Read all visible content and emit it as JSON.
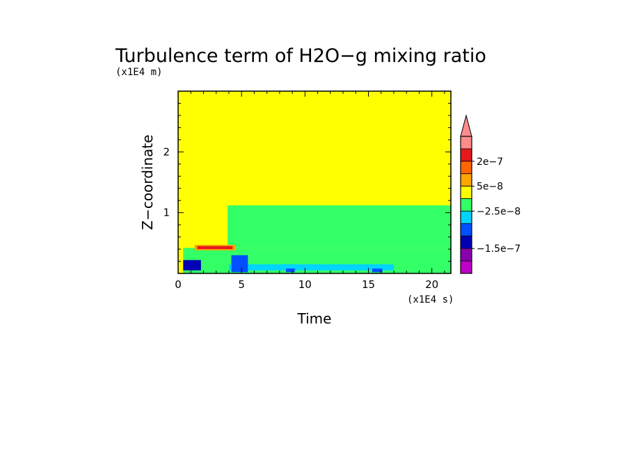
{
  "chart_data": {
    "type": "heatmap",
    "title": "Turbulence term of H2O−g mixing ratio",
    "xlabel": "Time",
    "ylabel": "Z−coordinate",
    "x_unit_label": "(x1E4 s)",
    "y_unit_label": "(x1E4 m)",
    "xlim": [
      0,
      21.5
    ],
    "ylim": [
      0,
      3
    ],
    "x_ticks": [
      0,
      5,
      10,
      15,
      20
    ],
    "x_tick_labels": [
      "0",
      "5",
      "10",
      "15",
      "20"
    ],
    "y_ticks": [
      1,
      2
    ],
    "y_tick_labels": [
      "1",
      "2"
    ],
    "background_color": "#ffff00",
    "colorbar": {
      "extend": "max",
      "levels": [
        {
          "color": "#ff8c8c"
        },
        {
          "color": "#e41a1c"
        },
        {
          "color": "#ff6600"
        },
        {
          "color": "#ffa500"
        },
        {
          "color": "#ffff00"
        },
        {
          "color": "#33ff66"
        },
        {
          "color": "#00d4ff"
        },
        {
          "color": "#0050ff"
        },
        {
          "color": "#0000b4"
        },
        {
          "color": "#8800b0"
        },
        {
          "color": "#c000c8"
        }
      ],
      "labels": [
        "2e−7",
        "5e−8",
        "−2.5e−8",
        "−1.5e−7"
      ]
    },
    "regions": [
      {
        "value": "-2.5e-8",
        "color": "#33ff66",
        "t0": 3.9,
        "t1": 21.5,
        "z0": 0.95,
        "z1": 1.12
      },
      {
        "value": "-2.5e-8",
        "color": "#33ff66",
        "t0": 3.9,
        "t1": 21.5,
        "z0": 0.42,
        "z1": 0.95
      },
      {
        "value": "-2.5e-8",
        "color": "#33ff66",
        "t0": 0.4,
        "t1": 3.9,
        "z0": 0.0,
        "z1": 0.42
      },
      {
        "value": "-2.5e-8",
        "color": "#33ff66",
        "t0": 3.9,
        "t1": 21.5,
        "z0": 0.0,
        "z1": 0.42
      },
      {
        "value": "5e-8",
        "color": "#ffa500",
        "t0": 1.3,
        "t1": 4.5,
        "z0": 0.38,
        "z1": 0.47
      },
      {
        "value": "2e-7",
        "color": "#e41a1c",
        "t0": 1.5,
        "t1": 4.3,
        "z0": 0.4,
        "z1": 0.45
      },
      {
        "value": "-5e-8",
        "color": "#00d4ff",
        "t0": 4.0,
        "t1": 17.0,
        "z0": 0.05,
        "z1": 0.15
      },
      {
        "value": "-1e-7",
        "color": "#0050ff",
        "t0": 4.2,
        "t1": 5.5,
        "z0": 0.02,
        "z1": 0.3
      },
      {
        "value": "-1.5e-7",
        "color": "#0000b4",
        "t0": 0.4,
        "t1": 1.8,
        "z0": 0.05,
        "z1": 0.22
      },
      {
        "value": "-1e-7",
        "color": "#0050ff",
        "t0": 8.5,
        "t1": 9.2,
        "z0": 0.02,
        "z1": 0.08
      },
      {
        "value": "-1e-7",
        "color": "#0050ff",
        "t0": 15.3,
        "t1": 16.1,
        "z0": 0.02,
        "z1": 0.08
      }
    ]
  }
}
